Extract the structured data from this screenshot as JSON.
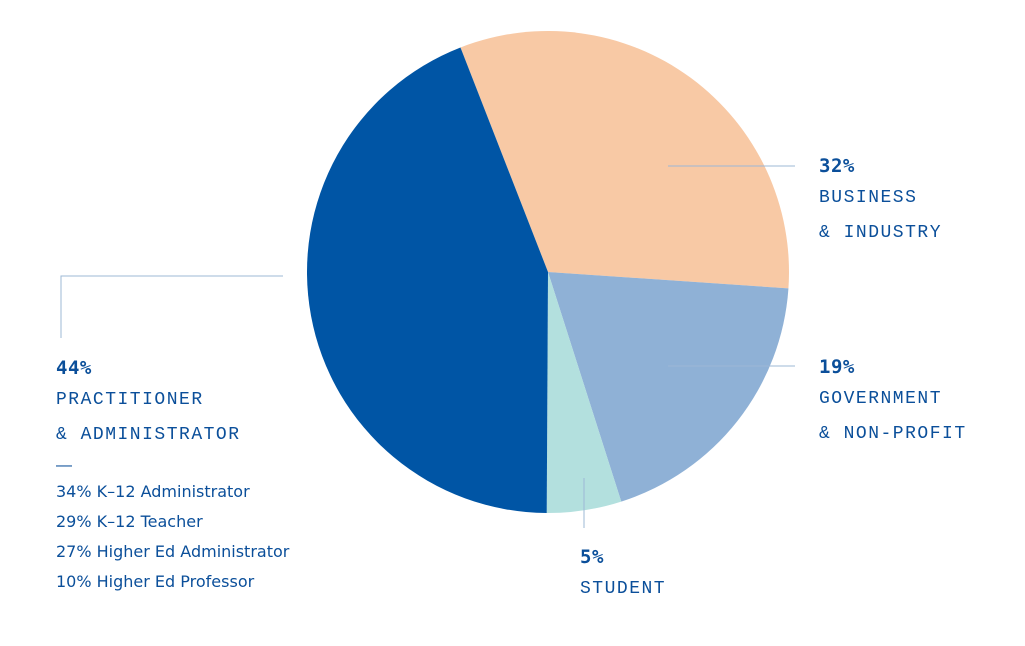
{
  "chart_data": {
    "type": "pie",
    "slices": [
      {
        "key": "business",
        "value": 32,
        "percent_label": "32%",
        "line1": "BUSINESS",
        "line2": "& INDUSTRY",
        "color": "#f8c9a5"
      },
      {
        "key": "government",
        "value": 19,
        "percent_label": "19%",
        "line1": "GOVERNMENT",
        "line2": "& NON-PROFIT",
        "color": "#8fb1d6"
      },
      {
        "key": "student",
        "value": 5,
        "percent_label": "5%",
        "line1": "STUDENT",
        "line2": "",
        "color": "#b3e0de"
      },
      {
        "key": "practitioner",
        "value": 44,
        "percent_label": "44%",
        "line1": "PRACTITIONER",
        "line2": "& ADMINISTRATOR",
        "color": "#0055a5"
      }
    ],
    "practitioner_breakdown": {
      "separator": "—",
      "items": [
        "34% K–12 Administrator",
        "29% K–12 Teacher",
        "27% Higher Ed Administrator",
        "10% Higher Ed Professor"
      ]
    },
    "colors": {
      "text": "#0b4f9a",
      "leader_line": "#9db8d6"
    }
  }
}
